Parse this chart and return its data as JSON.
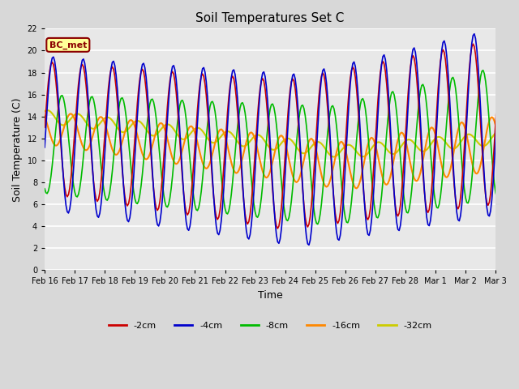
{
  "title": "Soil Temperatures Set C",
  "xlabel": "Time",
  "ylabel": "Soil Temperature (C)",
  "annotation": "BC_met",
  "ylim": [
    0,
    22
  ],
  "line_colors": {
    "-2cm": "#cc0000",
    "-4cm": "#0000cc",
    "-8cm": "#00bb00",
    "-16cm": "#ff8800",
    "-32cm": "#cccc00"
  },
  "legend_labels": [
    "-2cm",
    "-4cm",
    "-8cm",
    "-16cm",
    "-32cm"
  ],
  "tick_labels": [
    "Feb 16",
    "Feb 17",
    "Feb 18",
    "Feb 19",
    "Feb 20",
    "Feb 21",
    "Feb 22",
    "Feb 23",
    "Feb 24",
    "Feb 25",
    "Feb 26",
    "Feb 27",
    "Feb 28",
    "Mar 1",
    "Mar 2",
    "Mar 3"
  ],
  "background_color": "#d8d8d8",
  "plot_bg_color": "#e8e8e8",
  "grid_color": "#ffffff",
  "title_fontsize": 11,
  "axis_fontsize": 7,
  "label_fontsize": 9
}
